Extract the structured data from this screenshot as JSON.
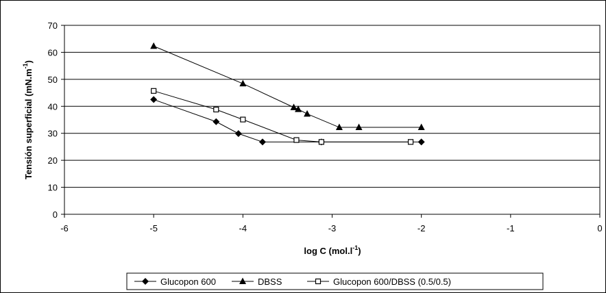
{
  "chart_data": {
    "type": "line",
    "title": "",
    "xlabel": "log C (mol.l",
    "xlabel_sup": "-1",
    "xlabel_tail": ")",
    "ylabel": "Tensión superficial (mN.m",
    "ylabel_sup": "-1",
    "ylabel_tail": ")",
    "xlim": [
      -6,
      0
    ],
    "ylim": [
      0,
      70
    ],
    "xticks": [
      -6,
      -5,
      -4,
      -3,
      -2,
      -1,
      0
    ],
    "yticks": [
      0,
      10,
      20,
      30,
      40,
      50,
      60,
      70
    ],
    "grid": "horizontal",
    "legend_position": "bottom",
    "series": [
      {
        "name": "Glucopon 600",
        "marker": "diamond",
        "color": "#000000",
        "points": [
          [
            -5.0,
            42.5
          ],
          [
            -4.3,
            34.3
          ],
          [
            -4.05,
            29.9
          ],
          [
            -3.78,
            26.8
          ],
          [
            -3.12,
            26.8
          ],
          [
            -2.0,
            26.8
          ]
        ]
      },
      {
        "name": "DBSS",
        "marker": "triangle",
        "color": "#000000",
        "points": [
          [
            -5.0,
            62.3
          ],
          [
            -4.0,
            48.4
          ],
          [
            -3.43,
            39.6
          ],
          [
            -3.38,
            38.9
          ],
          [
            -3.28,
            37.2
          ],
          [
            -2.92,
            32.2
          ],
          [
            -2.7,
            32.2
          ],
          [
            -2.0,
            32.2
          ]
        ]
      },
      {
        "name": "Glucopon 600/DBSS (0.5/0.5)",
        "marker": "square-open",
        "color": "#000000",
        "points": [
          [
            -5.0,
            45.7
          ],
          [
            -4.3,
            38.8
          ],
          [
            -4.0,
            35.1
          ],
          [
            -3.4,
            27.5
          ],
          [
            -3.12,
            26.8
          ],
          [
            -2.12,
            26.8
          ]
        ]
      }
    ]
  }
}
